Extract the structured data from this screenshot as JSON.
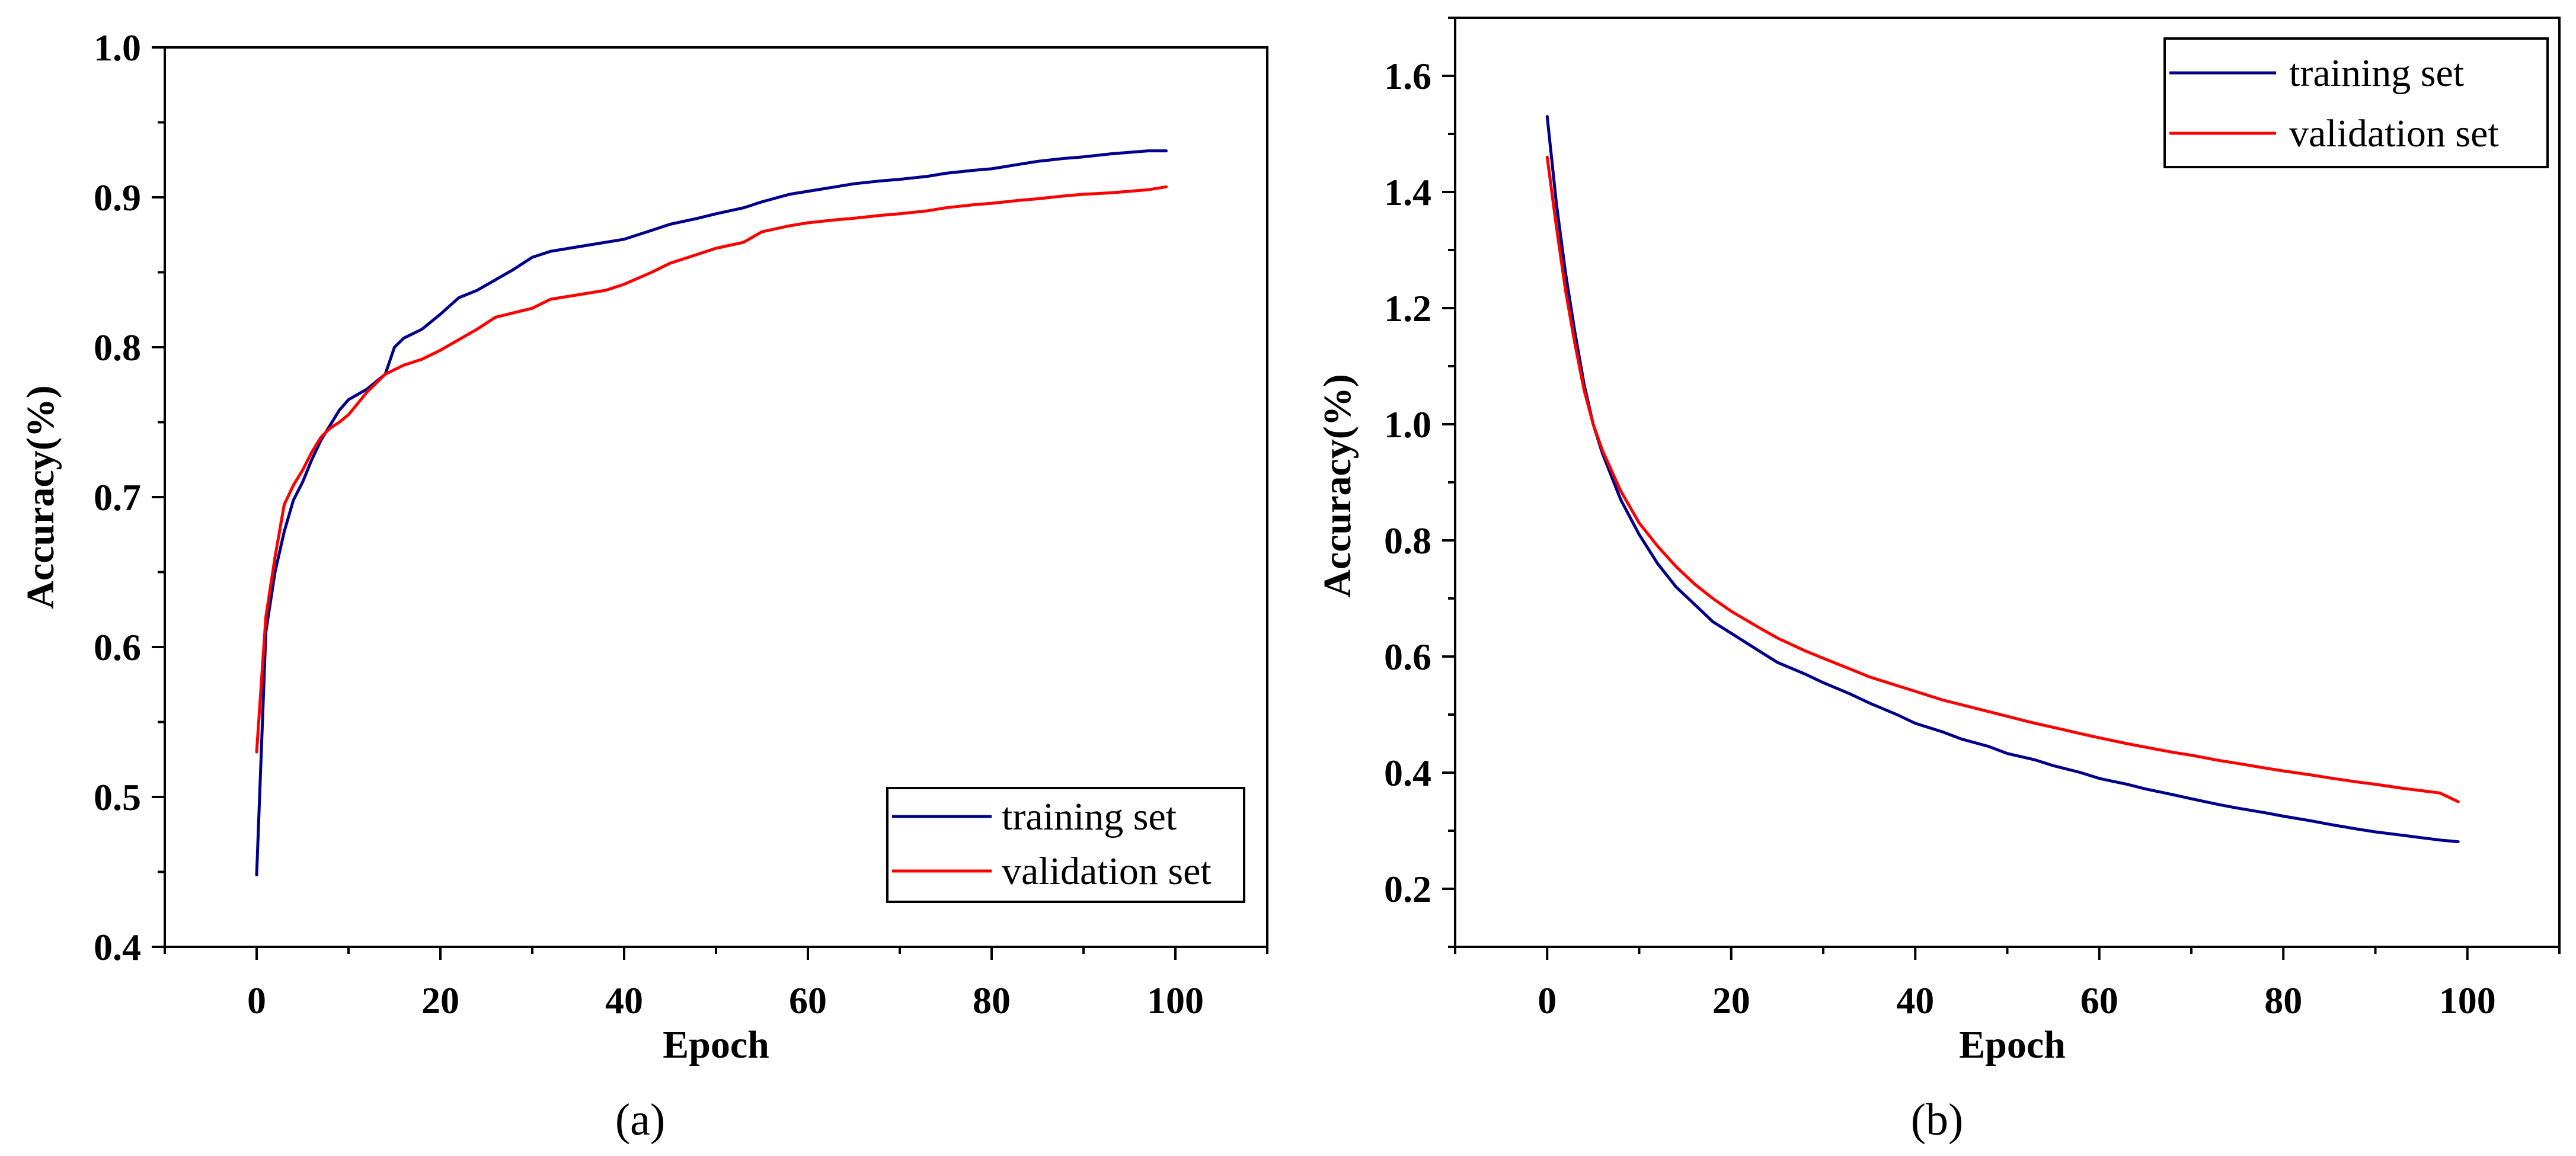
{
  "chart_data": [
    {
      "type": "line",
      "panel_label": "(a)",
      "title": "",
      "xlabel": "Epoch",
      "ylabel": "Accuracy(%)",
      "xlim": [
        -10,
        110
      ],
      "ylim": [
        0.4,
        1.0
      ],
      "xticks": [
        0,
        20,
        40,
        60,
        80,
        100
      ],
      "yticks": [
        0.4,
        0.5,
        0.6,
        0.7,
        0.8,
        0.9,
        1.0
      ],
      "xtick_labels": [
        "0",
        "20",
        "40",
        "60",
        "80",
        "100"
      ],
      "ytick_labels": [
        "0.4",
        "0.5",
        "0.6",
        "0.7",
        "0.8",
        "0.9",
        "1.0"
      ],
      "grid": false,
      "legend_position": "bottom-right",
      "series": [
        {
          "name": "training set",
          "color": "#00008b",
          "x": [
            0,
            1,
            2,
            3,
            4,
            5,
            6,
            7,
            8,
            9,
            10,
            12,
            14,
            15,
            16,
            18,
            20,
            22,
            24,
            26,
            28,
            30,
            32,
            35,
            38,
            40,
            43,
            45,
            48,
            50,
            53,
            55,
            58,
            60,
            63,
            65,
            68,
            70,
            73,
            75,
            78,
            80,
            83,
            85,
            88,
            90,
            93,
            95,
            97,
            99
          ],
          "y": [
            0.448,
            0.61,
            0.65,
            0.677,
            0.698,
            0.71,
            0.725,
            0.738,
            0.748,
            0.758,
            0.765,
            0.772,
            0.782,
            0.8,
            0.806,
            0.812,
            0.822,
            0.833,
            0.838,
            0.845,
            0.852,
            0.86,
            0.864,
            0.867,
            0.87,
            0.872,
            0.878,
            0.882,
            0.886,
            0.889,
            0.893,
            0.897,
            0.902,
            0.904,
            0.907,
            0.909,
            0.911,
            0.912,
            0.914,
            0.916,
            0.918,
            0.919,
            0.922,
            0.924,
            0.926,
            0.927,
            0.929,
            0.93,
            0.931,
            0.931
          ]
        },
        {
          "name": "validation set",
          "color": "#ff0000",
          "x": [
            0,
            1,
            2,
            3,
            4,
            5,
            6,
            7,
            8,
            9,
            10,
            12,
            14,
            16,
            18,
            20,
            22,
            24,
            26,
            28,
            30,
            32,
            35,
            38,
            40,
            43,
            45,
            48,
            50,
            53,
            55,
            58,
            60,
            63,
            65,
            68,
            70,
            73,
            75,
            78,
            80,
            83,
            85,
            88,
            90,
            93,
            95,
            97,
            99
          ],
          "y": [
            0.53,
            0.62,
            0.66,
            0.695,
            0.708,
            0.718,
            0.73,
            0.74,
            0.746,
            0.75,
            0.755,
            0.77,
            0.782,
            0.788,
            0.792,
            0.798,
            0.805,
            0.812,
            0.82,
            0.823,
            0.826,
            0.832,
            0.835,
            0.838,
            0.842,
            0.85,
            0.856,
            0.862,
            0.866,
            0.87,
            0.877,
            0.881,
            0.883,
            0.885,
            0.886,
            0.888,
            0.889,
            0.891,
            0.893,
            0.895,
            0.896,
            0.898,
            0.899,
            0.901,
            0.902,
            0.903,
            0.904,
            0.905,
            0.907
          ]
        }
      ]
    },
    {
      "type": "line",
      "panel_label": "(b)",
      "title": "",
      "xlabel": "Epoch",
      "ylabel": "Accuracy(%)",
      "xlim": [
        -10,
        110
      ],
      "ylim": [
        0.1,
        1.7
      ],
      "xticks": [
        0,
        20,
        40,
        60,
        80,
        100
      ],
      "yticks": [
        0.2,
        0.4,
        0.6,
        0.8,
        1.0,
        1.2,
        1.4,
        1.6
      ],
      "xtick_labels": [
        "0",
        "20",
        "40",
        "60",
        "80",
        "100"
      ],
      "ytick_labels": [
        "0.2",
        "0.4",
        "0.6",
        "0.8",
        "1.0",
        "1.2",
        "1.4",
        "1.6"
      ],
      "grid": false,
      "legend_position": "top-right",
      "series": [
        {
          "name": "training set",
          "color": "#00008b",
          "x": [
            0,
            1,
            2,
            3,
            4,
            5,
            6,
            8,
            10,
            12,
            14,
            16,
            18,
            20,
            23,
            25,
            28,
            30,
            33,
            35,
            38,
            40,
            43,
            45,
            48,
            50,
            53,
            55,
            58,
            60,
            63,
            65,
            68,
            70,
            73,
            75,
            78,
            80,
            83,
            85,
            88,
            90,
            93,
            95,
            97,
            99
          ],
          "y": [
            1.53,
            1.38,
            1.26,
            1.16,
            1.07,
            1.0,
            0.95,
            0.87,
            0.81,
            0.76,
            0.72,
            0.69,
            0.66,
            0.64,
            0.61,
            0.59,
            0.57,
            0.555,
            0.535,
            0.52,
            0.5,
            0.485,
            0.47,
            0.458,
            0.445,
            0.433,
            0.422,
            0.412,
            0.4,
            0.39,
            0.38,
            0.372,
            0.362,
            0.355,
            0.345,
            0.339,
            0.331,
            0.325,
            0.317,
            0.311,
            0.303,
            0.298,
            0.292,
            0.288,
            0.284,
            0.281
          ]
        },
        {
          "name": "validation set",
          "color": "#ff0000",
          "x": [
            0,
            1,
            2,
            3,
            4,
            5,
            6,
            8,
            10,
            12,
            14,
            16,
            18,
            20,
            23,
            25,
            28,
            30,
            33,
            35,
            38,
            40,
            43,
            45,
            48,
            50,
            53,
            55,
            58,
            60,
            63,
            65,
            68,
            70,
            73,
            75,
            78,
            80,
            83,
            85,
            88,
            90,
            93,
            95,
            97,
            99
          ],
          "y": [
            1.46,
            1.34,
            1.23,
            1.14,
            1.06,
            1.0,
            0.955,
            0.885,
            0.83,
            0.79,
            0.755,
            0.725,
            0.7,
            0.678,
            0.65,
            0.632,
            0.61,
            0.597,
            0.578,
            0.565,
            0.55,
            0.54,
            0.525,
            0.517,
            0.505,
            0.497,
            0.485,
            0.478,
            0.467,
            0.46,
            0.45,
            0.444,
            0.435,
            0.43,
            0.421,
            0.416,
            0.408,
            0.403,
            0.396,
            0.391,
            0.384,
            0.38,
            0.373,
            0.369,
            0.365,
            0.35
          ]
        }
      ]
    }
  ]
}
